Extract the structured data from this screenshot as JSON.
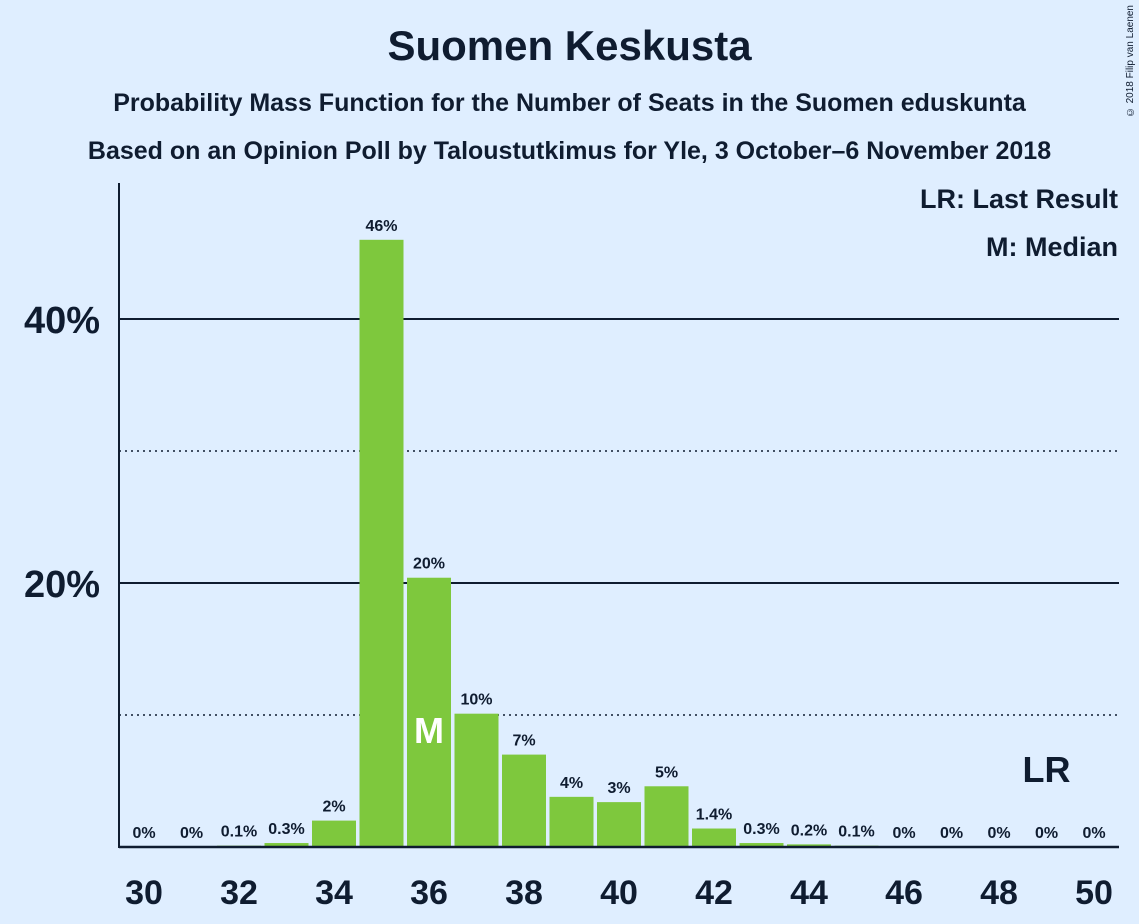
{
  "title": "Suomen Keskusta",
  "subtitle": "Probability Mass Function for the Number of Seats in the Suomen eduskunta",
  "subtitle2": "Based on an Opinion Poll by Taloustutkimus for Yle, 3 October–6 November 2018",
  "copyright": "© 2018 Filip van Laenen",
  "legend": {
    "last_result": "LR: Last Result",
    "median": "M: Median"
  },
  "colors": {
    "background": "#dfeeff",
    "bar": "#7ec83d",
    "text": "#0f1c30"
  },
  "chart_data": {
    "type": "bar",
    "x": [
      30,
      31,
      32,
      33,
      34,
      35,
      36,
      37,
      38,
      39,
      40,
      41,
      42,
      43,
      44,
      45,
      46,
      47,
      48,
      49,
      50
    ],
    "values": [
      0,
      0,
      0.1,
      0.3,
      2,
      46,
      20.4,
      10.1,
      7,
      3.8,
      3.4,
      4.6,
      1.4,
      0.3,
      0.2,
      0.1,
      0,
      0,
      0,
      0,
      0
    ],
    "data_labels": [
      "0%",
      "0%",
      "0.1%",
      "0.3%",
      "2%",
      "46%",
      "20%",
      "10%",
      "7%",
      "4%",
      "3%",
      "5%",
      "1.4%",
      "0.3%",
      "0.2%",
      "0.1%",
      "0%",
      "0%",
      "0%",
      "0%",
      "0%"
    ],
    "x_ticks": [
      "30",
      "32",
      "34",
      "36",
      "38",
      "40",
      "42",
      "44",
      "46",
      "48",
      "50"
    ],
    "y_ticks": [
      "20%",
      "40%"
    ],
    "ylim": [
      0,
      50
    ],
    "grid_solid": [
      20,
      40
    ],
    "grid_dotted": [
      10,
      30
    ],
    "median": 36,
    "median_label": "M",
    "last_result": 49,
    "last_result_label": "LR",
    "legend_position": "top-right"
  }
}
